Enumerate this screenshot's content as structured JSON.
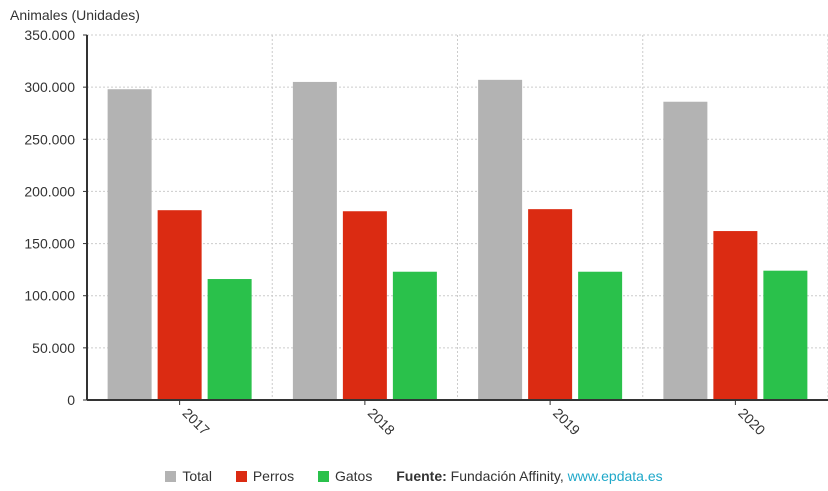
{
  "chart_data": {
    "type": "bar",
    "ylabel": "Animales (Unidades)",
    "categories": [
      "2017",
      "2018",
      "2019",
      "2020"
    ],
    "series": [
      {
        "name": "Total",
        "color": "#b3b3b3",
        "values": [
          298000,
          305000,
          307000,
          286000
        ]
      },
      {
        "name": "Perros",
        "color": "#db2b12",
        "values": [
          182000,
          181000,
          183000,
          162000
        ]
      },
      {
        "name": "Gatos",
        "color": "#2ac14b",
        "values": [
          116000,
          123000,
          123000,
          124000
        ]
      }
    ],
    "ylim": [
      0,
      350000
    ],
    "yticks": [
      {
        "value": 0,
        "label": "0"
      },
      {
        "value": 50000,
        "label": "50.000"
      },
      {
        "value": 100000,
        "label": "100.000"
      },
      {
        "value": 150000,
        "label": "150.000"
      },
      {
        "value": 200000,
        "label": "200.000"
      },
      {
        "value": 250000,
        "label": "250.000"
      },
      {
        "value": 300000,
        "label": "300.000"
      },
      {
        "value": 350000,
        "label": "350.000"
      }
    ],
    "grid": true,
    "legend_position": "bottom"
  },
  "legend": {
    "items": [
      {
        "label": "Total",
        "color": "#b3b3b3"
      },
      {
        "label": "Perros",
        "color": "#db2b12"
      },
      {
        "label": "Gatos",
        "color": "#2ac14b"
      }
    ]
  },
  "source": {
    "label": "Fuente:",
    "text": "Fundación Affinity,",
    "link": "www.epdata.es"
  }
}
